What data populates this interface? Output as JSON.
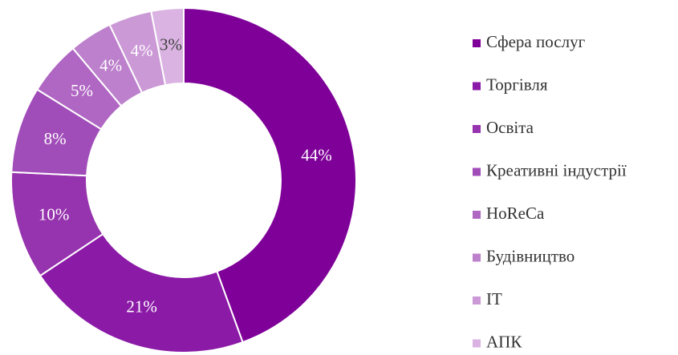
{
  "chart_data": {
    "type": "donut",
    "categories": [
      "Сфера послуг",
      "Торгівля",
      "Освіта",
      "Креативні індустрії",
      "HoReCa",
      "Будівництво",
      "IT",
      "АПК"
    ],
    "values": [
      44,
      21,
      10,
      8,
      5,
      4,
      4,
      3
    ],
    "value_labels": [
      "44%",
      "21%",
      "10%",
      "8%",
      "5%",
      "4%",
      "4%",
      "3%"
    ],
    "colors": [
      "#7f0099",
      "#8b1aa7",
      "#9633ae",
      "#a14db9",
      "#b066c3",
      "#bd80cc",
      "#cb99d6",
      "#dab3e2"
    ],
    "value_label_colors": [
      "#ffffff",
      "#ffffff",
      "#ffffff",
      "#ffffff",
      "#ffffff",
      "#ffffff",
      "#ffffff",
      "#404040"
    ],
    "legend": "right"
  }
}
